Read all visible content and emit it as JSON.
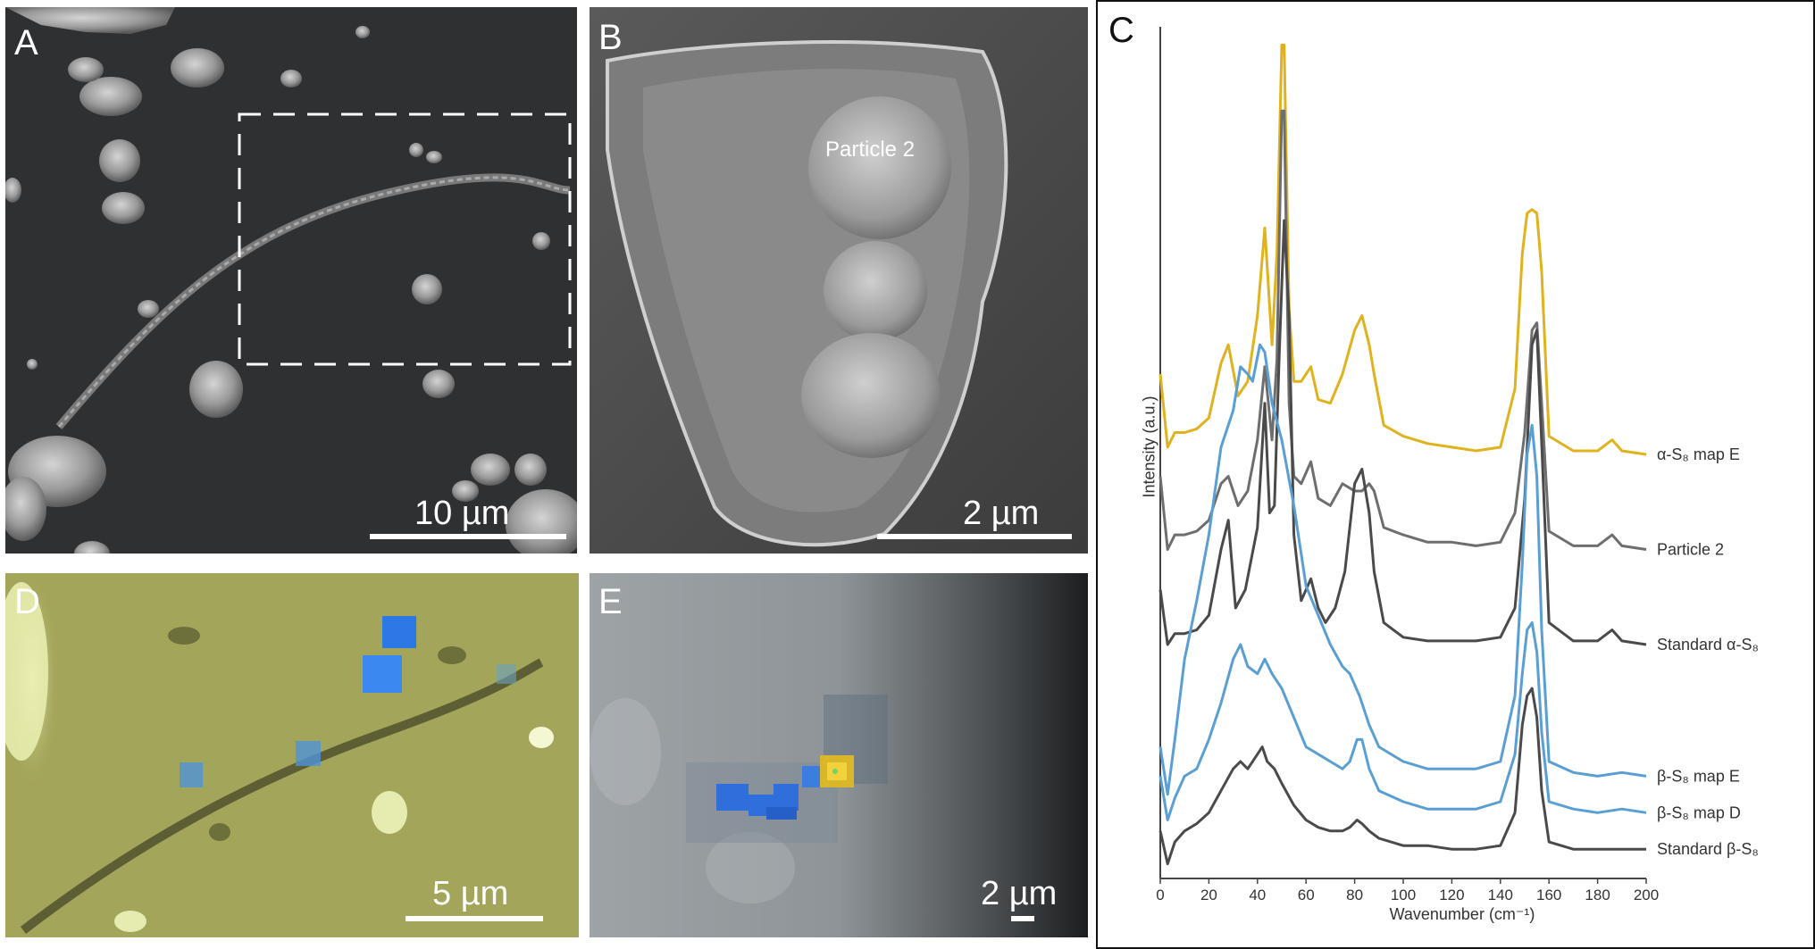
{
  "panels": {
    "a": {
      "letter": "A",
      "scale_label": "10 µm"
    },
    "b": {
      "letter": "B",
      "scale_label": "2 µm",
      "annotation": "Particle 2"
    },
    "c": {
      "letter": "C"
    },
    "d": {
      "letter": "D",
      "scale_label": "5 µm"
    },
    "e": {
      "letter": "E",
      "scale_label": "2 µm"
    }
  },
  "chart_data": {
    "type": "line",
    "xlabel": "Wavenumber (cm⁻¹)",
    "ylabel": "Intensity (a.u.)",
    "xlim": [
      0,
      200
    ],
    "x_ticks": [
      0,
      20,
      40,
      60,
      80,
      100,
      120,
      140,
      160,
      180,
      200
    ],
    "y_ticks": [],
    "grid": false,
    "legend": "labels at right end of each trace",
    "colors": {
      "yellow": "#e0b21d",
      "gray": "#6e6e6e",
      "dark": "#4a4a4a",
      "blue": "#5a9fd4"
    },
    "series": [
      {
        "name": "α-S₈ map E",
        "color": "#e0b21d",
        "offset": 0.78,
        "x": [
          0,
          3,
          6,
          10,
          15,
          20,
          25,
          28,
          32,
          36,
          40,
          43,
          46,
          48,
          50,
          51,
          53,
          55,
          58,
          62,
          65,
          70,
          75,
          80,
          83,
          86,
          88,
          92,
          100,
          110,
          120,
          130,
          140,
          146,
          149,
          151,
          153,
          155,
          157,
          160,
          170,
          180,
          186,
          190,
          200
        ],
        "y": [
          0.22,
          0.02,
          0.06,
          0.06,
          0.07,
          0.1,
          0.25,
          0.3,
          0.16,
          0.2,
          0.38,
          0.62,
          0.3,
          0.55,
          1.12,
          1.12,
          0.4,
          0.2,
          0.2,
          0.24,
          0.15,
          0.14,
          0.22,
          0.34,
          0.38,
          0.3,
          0.22,
          0.08,
          0.05,
          0.03,
          0.02,
          0.01,
          0.02,
          0.18,
          0.55,
          0.66,
          0.67,
          0.66,
          0.5,
          0.05,
          0.01,
          0.01,
          0.04,
          0.01,
          0.0
        ]
      },
      {
        "name": "Particle 2",
        "color": "#6e6e6e",
        "offset": 0.52,
        "x": [
          0,
          3,
          6,
          10,
          15,
          20,
          25,
          28,
          32,
          36,
          40,
          43,
          46,
          48,
          50,
          51,
          53,
          55,
          58,
          62,
          65,
          70,
          75,
          80,
          83,
          86,
          88,
          92,
          100,
          110,
          120,
          130,
          140,
          146,
          150,
          153,
          155,
          157,
          160,
          170,
          180,
          186,
          190,
          200
        ],
        "y": [
          0.2,
          0.0,
          0.04,
          0.04,
          0.05,
          0.08,
          0.18,
          0.2,
          0.12,
          0.16,
          0.3,
          0.5,
          0.3,
          0.52,
          1.2,
          1.2,
          0.4,
          0.2,
          0.18,
          0.24,
          0.14,
          0.12,
          0.18,
          0.16,
          0.16,
          0.18,
          0.16,
          0.06,
          0.04,
          0.02,
          0.02,
          0.01,
          0.02,
          0.1,
          0.32,
          0.6,
          0.62,
          0.4,
          0.05,
          0.01,
          0.01,
          0.04,
          0.01,
          0.0
        ]
      },
      {
        "name": "Standard α-S₈",
        "color": "#4a4a4a",
        "offset": 0.26,
        "x": [
          0,
          3,
          6,
          10,
          15,
          20,
          25,
          28,
          31,
          35,
          40,
          43,
          45,
          47,
          49,
          51,
          53,
          55,
          58,
          62,
          65,
          68,
          72,
          76,
          80,
          83,
          86,
          88,
          92,
          100,
          110,
          120,
          130,
          140,
          146,
          150,
          153,
          155,
          157,
          160,
          170,
          180,
          186,
          190,
          200
        ],
        "y": [
          0.15,
          0.0,
          0.03,
          0.03,
          0.04,
          0.08,
          0.26,
          0.34,
          0.1,
          0.15,
          0.32,
          0.66,
          0.36,
          0.38,
          0.8,
          1.16,
          0.9,
          0.3,
          0.12,
          0.18,
          0.1,
          0.06,
          0.1,
          0.2,
          0.44,
          0.48,
          0.36,
          0.2,
          0.06,
          0.02,
          0.01,
          0.01,
          0.01,
          0.02,
          0.1,
          0.4,
          0.82,
          0.86,
          0.55,
          0.06,
          0.01,
          0.01,
          0.04,
          0.01,
          0.0
        ]
      },
      {
        "name": "β-S₈ map E",
        "color": "#5a9fd4",
        "offset": -0.1,
        "x": [
          0,
          3,
          6,
          10,
          15,
          20,
          25,
          30,
          33,
          36,
          38,
          41,
          43,
          46,
          50,
          55,
          60,
          65,
          70,
          75,
          78,
          82,
          86,
          90,
          100,
          110,
          120,
          130,
          140,
          146,
          149,
          151,
          153,
          155,
          157,
          160,
          170,
          180,
          190,
          200
        ],
        "y": [
          0.08,
          -0.05,
          0.1,
          0.32,
          0.48,
          0.66,
          0.9,
          1.0,
          1.12,
          1.1,
          1.08,
          1.18,
          1.16,
          1.02,
          0.92,
          0.74,
          0.52,
          0.44,
          0.36,
          0.3,
          0.28,
          0.22,
          0.14,
          0.08,
          0.04,
          0.02,
          0.02,
          0.02,
          0.04,
          0.22,
          0.58,
          0.88,
          0.96,
          0.82,
          0.4,
          0.04,
          0.01,
          0.0,
          0.01,
          0.0
        ]
      },
      {
        "name": "β-S₈ map D",
        "color": "#5a9fd4",
        "offset": -0.2,
        "x": [
          0,
          3,
          6,
          10,
          15,
          20,
          25,
          30,
          33,
          36,
          40,
          43,
          46,
          50,
          55,
          60,
          65,
          70,
          75,
          78,
          81,
          83,
          86,
          90,
          100,
          110,
          120,
          130,
          140,
          146,
          149,
          151,
          153,
          155,
          157,
          160,
          170,
          180,
          190,
          200
        ],
        "y": [
          0.1,
          -0.02,
          0.04,
          0.1,
          0.12,
          0.2,
          0.3,
          0.42,
          0.46,
          0.4,
          0.38,
          0.42,
          0.38,
          0.34,
          0.26,
          0.18,
          0.16,
          0.14,
          0.12,
          0.14,
          0.2,
          0.2,
          0.12,
          0.06,
          0.03,
          0.01,
          0.01,
          0.01,
          0.03,
          0.16,
          0.38,
          0.5,
          0.52,
          0.44,
          0.22,
          0.03,
          0.01,
          0.0,
          0.01,
          0.0
        ]
      },
      {
        "name": "Standard β-S₈",
        "color": "#4a4a4a",
        "offset": -0.3,
        "x": [
          0,
          3,
          6,
          10,
          15,
          20,
          25,
          30,
          33,
          36,
          40,
          42,
          44,
          47,
          50,
          55,
          60,
          65,
          70,
          75,
          78,
          81,
          83,
          86,
          90,
          100,
          110,
          120,
          130,
          140,
          146,
          149,
          151,
          153,
          155,
          157,
          160,
          170,
          180,
          190,
          200
        ],
        "y": [
          0.05,
          -0.04,
          0.02,
          0.05,
          0.07,
          0.1,
          0.16,
          0.22,
          0.24,
          0.22,
          0.26,
          0.28,
          0.24,
          0.22,
          0.18,
          0.12,
          0.08,
          0.06,
          0.05,
          0.05,
          0.06,
          0.08,
          0.07,
          0.05,
          0.03,
          0.01,
          0.01,
          0.0,
          0.0,
          0.01,
          0.1,
          0.34,
          0.42,
          0.44,
          0.36,
          0.16,
          0.02,
          0.0,
          0.0,
          0.0,
          0.0
        ]
      }
    ]
  }
}
